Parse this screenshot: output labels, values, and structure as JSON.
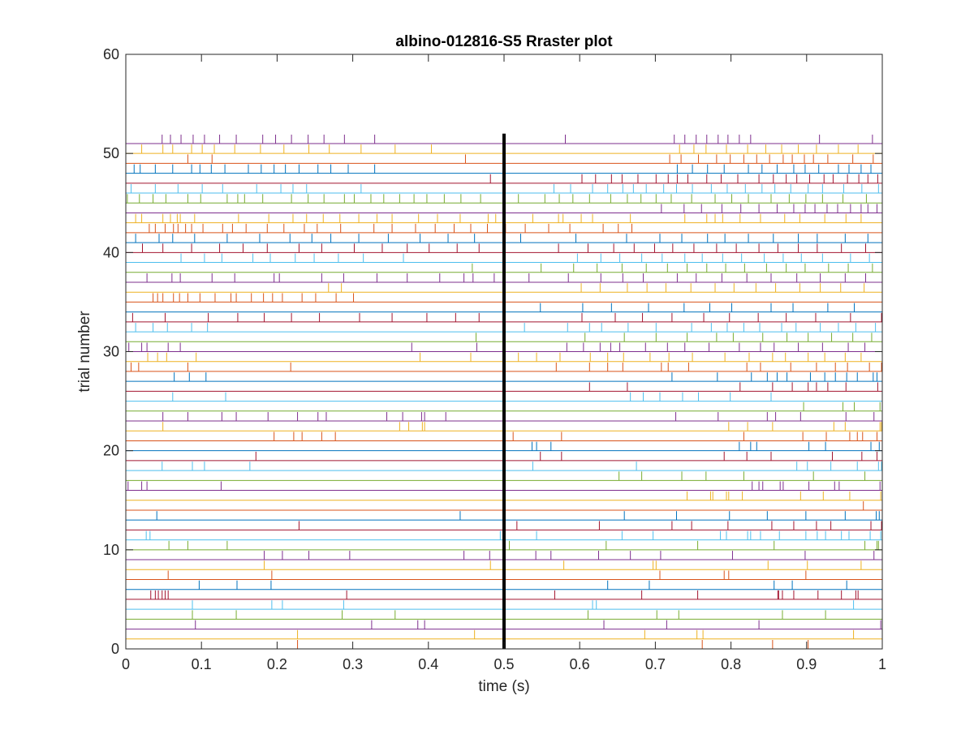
{
  "chart_data": {
    "type": "raster",
    "title": "albino-012816-S5 Rraster plot",
    "xlabel": "time (s)",
    "ylabel": "trial number",
    "xlim": [
      0,
      1
    ],
    "ylim": [
      0,
      60
    ],
    "xticks": [
      0,
      0.1,
      0.2,
      0.3,
      0.4,
      0.5,
      0.6,
      0.7,
      0.8,
      0.9,
      1
    ],
    "xtick_labels": [
      "0",
      "0.1",
      "0.2",
      "0.3",
      "0.4",
      "0.5",
      "0.6",
      "0.7",
      "0.8",
      "0.9",
      "1"
    ],
    "yticks": [
      0,
      10,
      20,
      30,
      40,
      50,
      60
    ],
    "ytick_labels": [
      "0",
      "10",
      "20",
      "30",
      "40",
      "50",
      "60"
    ],
    "grid": false,
    "box": true,
    "stimulus_marker": {
      "x": 0.5,
      "y_range": [
        0,
        52
      ],
      "color": "#000000"
    },
    "series_colors": [
      "#d95319",
      "#edb120",
      "#7e2f8e",
      "#77ac30",
      "#4dbeee",
      "#a2142f",
      "#0072bd"
    ],
    "trials": [
      {
        "trial": 1,
        "spikes": [
          0.227,
          0.762,
          0.855,
          0.902
        ]
      },
      {
        "trial": 2,
        "spikes": [
          0.227,
          0.461,
          0.686,
          0.755,
          0.763,
          0.962
        ]
      },
      {
        "trial": 3,
        "spikes": [
          0.092,
          0.325,
          0.386,
          0.395,
          0.632,
          0.715,
          0.837,
          0.998
        ]
      },
      {
        "trial": 4,
        "spikes": [
          0.088,
          0.146,
          0.286,
          0.356,
          0.611,
          0.702,
          0.731,
          0.868,
          0.925
        ]
      },
      {
        "trial": 5,
        "spikes": [
          0.088,
          0.193,
          0.207,
          0.288,
          0.617,
          0.622,
          0.962
        ]
      },
      {
        "trial": 6,
        "spikes": [
          0.033,
          0.039,
          0.043,
          0.048,
          0.052,
          0.056,
          0.292,
          0.567,
          0.682,
          0.756,
          0.862,
          0.863,
          0.868,
          0.883,
          0.915,
          0.946,
          0.965,
          0.968
        ]
      },
      {
        "trial": 7,
        "spikes": [
          0.097,
          0.147,
          0.192,
          0.637,
          0.692,
          0.857,
          0.881,
          0.953
        ]
      },
      {
        "trial": 8,
        "spikes": [
          0.056,
          0.193,
          0.706,
          0.791,
          0.797,
          0.899
        ]
      },
      {
        "trial": 9,
        "spikes": [
          0.183,
          0.482,
          0.579,
          0.697,
          0.701,
          0.849,
          0.901,
          0.972
        ]
      },
      {
        "trial": 10,
        "spikes": [
          0.183,
          0.207,
          0.242,
          0.296,
          0.447,
          0.481,
          0.542,
          0.562,
          0.625,
          0.667,
          0.707,
          0.802,
          0.898,
          0.989
        ]
      },
      {
        "trial": 11,
        "spikes": [
          0.057,
          0.082,
          0.134,
          0.507,
          0.635,
          0.756,
          0.857,
          0.977,
          0.993,
          0.995
        ]
      },
      {
        "trial": 12,
        "spikes": [
          0.027,
          0.032,
          0.495,
          0.543,
          0.656,
          0.697,
          0.786,
          0.794,
          0.822,
          0.826,
          0.839,
          0.864,
          0.899,
          0.914,
          0.925,
          0.946,
          0.956,
          0.984,
          0.998
        ]
      },
      {
        "trial": 13,
        "spikes": [
          0.229,
          0.517,
          0.626,
          0.722,
          0.748,
          0.796,
          0.854,
          0.883,
          0.913,
          0.932,
          0.985,
          0.999
        ]
      },
      {
        "trial": 14,
        "spikes": [
          0.041,
          0.442,
          0.659,
          0.728,
          0.798,
          0.848,
          0.899,
          0.951,
          0.992,
          0.996
        ]
      },
      {
        "trial": 15,
        "spikes": [
          0.975
        ]
      },
      {
        "trial": 16,
        "spikes": [
          0.742,
          0.773,
          0.776,
          0.794,
          0.797,
          0.815,
          0.892,
          0.922,
          0.957,
          0.998
        ]
      },
      {
        "trial": 17,
        "spikes": [
          0.003,
          0.021,
          0.028,
          0.126,
          0.828,
          0.837,
          0.842,
          0.865,
          0.869,
          0.903,
          0.937,
          0.943,
          0.997
        ]
      },
      {
        "trial": 18,
        "spikes": [
          0.652,
          0.682,
          0.735,
          0.767,
          0.817,
          0.909,
          0.977
        ]
      },
      {
        "trial": 19,
        "spikes": [
          0.048,
          0.088,
          0.104,
          0.164,
          0.538,
          0.675,
          0.887,
          0.901,
          0.932,
          0.967,
          0.995,
          0.999
        ]
      },
      {
        "trial": 20,
        "spikes": [
          0.172,
          0.548,
          0.576,
          0.791,
          0.821,
          0.853,
          0.934,
          0.973,
          0.993
        ]
      },
      {
        "trial": 21,
        "spikes": [
          0.537,
          0.543,
          0.562,
          0.811,
          0.826,
          0.834,
          0.903,
          0.925,
          0.985,
          0.996
        ]
      },
      {
        "trial": 22,
        "spikes": [
          0.196,
          0.222,
          0.233,
          0.259,
          0.277,
          0.512,
          0.576,
          0.817,
          0.895,
          0.926,
          0.957,
          0.967,
          0.974,
          0.993
        ]
      },
      {
        "trial": 23,
        "spikes": [
          0.049,
          0.362,
          0.374,
          0.392,
          0.395,
          0.797,
          0.822,
          0.855,
          0.936,
          0.951,
          0.997,
          0.999
        ]
      },
      {
        "trial": 24,
        "spikes": [
          0.049,
          0.082,
          0.127,
          0.146,
          0.188,
          0.227,
          0.254,
          0.265,
          0.345,
          0.366,
          0.391,
          0.395,
          0.423,
          0.727,
          0.783,
          0.848,
          0.859,
          0.892,
          0.952,
          0.989
        ]
      },
      {
        "trial": 25,
        "spikes": [
          0.896,
          0.948,
          0.963,
          0.997
        ]
      },
      {
        "trial": 26,
        "spikes": [
          0.062,
          0.132,
          0.667,
          0.684,
          0.706,
          0.736,
          0.757,
          0.799,
          0.853
        ]
      },
      {
        "trial": 27,
        "spikes": [
          0.613,
          0.663,
          0.812,
          0.855,
          0.881,
          0.902,
          0.913,
          0.928,
          0.952,
          0.994
        ]
      },
      {
        "trial": 28,
        "spikes": [
          0.064,
          0.084,
          0.106,
          0.722,
          0.782,
          0.827,
          0.848,
          0.861,
          0.874,
          0.905,
          0.924,
          0.938,
          0.953,
          0.967,
          0.988,
          0.993
        ]
      },
      {
        "trial": 29,
        "spikes": [
          0.007,
          0.017,
          0.082,
          0.218,
          0.569,
          0.613,
          0.637,
          0.657,
          0.708,
          0.717,
          0.744,
          0.821,
          0.839,
          0.879,
          0.913,
          0.938,
          0.954,
          0.983,
          0.999
        ]
      },
      {
        "trial": 30,
        "spikes": [
          0.029,
          0.042,
          0.054,
          0.093,
          0.389,
          0.456,
          0.519,
          0.543,
          0.574,
          0.614,
          0.637,
          0.658,
          0.693,
          0.718,
          0.749,
          0.792,
          0.824,
          0.855,
          0.872,
          0.902,
          0.924,
          0.951,
          0.972
        ]
      },
      {
        "trial": 31,
        "spikes": [
          0.004,
          0.021,
          0.028,
          0.056,
          0.072,
          0.378,
          0.464,
          0.583,
          0.605,
          0.627,
          0.641,
          0.653,
          0.687,
          0.716,
          0.739,
          0.771,
          0.811,
          0.839,
          0.857,
          0.889,
          0.921,
          0.955,
          0.977
        ]
      },
      {
        "trial": 32,
        "spikes": [
          0.463,
          0.607,
          0.659,
          0.701,
          0.742,
          0.781,
          0.803,
          0.842,
          0.874,
          0.902,
          0.933,
          0.961,
          0.986
        ]
      },
      {
        "trial": 33,
        "spikes": [
          0.013,
          0.036,
          0.055,
          0.087,
          0.108,
          0.527,
          0.584,
          0.613,
          0.629,
          0.664,
          0.701,
          0.748,
          0.774,
          0.795,
          0.817,
          0.838,
          0.867,
          0.886,
          0.918,
          0.942,
          0.965,
          0.991
        ]
      },
      {
        "trial": 34,
        "spikes": [
          0.009,
          0.052,
          0.109,
          0.148,
          0.183,
          0.219,
          0.256,
          0.309,
          0.352,
          0.398,
          0.436,
          0.467,
          0.603,
          0.647,
          0.683,
          0.722,
          0.764,
          0.798,
          0.836,
          0.873,
          0.912,
          0.958,
          0.999
        ]
      },
      {
        "trial": 35,
        "spikes": [
          0.548,
          0.604,
          0.642,
          0.691,
          0.738,
          0.772,
          0.801,
          0.853,
          0.882,
          0.928,
          0.963
        ]
      },
      {
        "trial": 36,
        "spikes": [
          0.036,
          0.042,
          0.049,
          0.063,
          0.071,
          0.082,
          0.098,
          0.118,
          0.139,
          0.146,
          0.166,
          0.182,
          0.194,
          0.207,
          0.233,
          0.251,
          0.278,
          0.301
        ]
      },
      {
        "trial": 37,
        "spikes": [
          0.268,
          0.285,
          0.602,
          0.627,
          0.663,
          0.689,
          0.714,
          0.747,
          0.779,
          0.804,
          0.833,
          0.859,
          0.891,
          0.918,
          0.945,
          0.976
        ]
      },
      {
        "trial": 38,
        "spikes": [
          0.028,
          0.061,
          0.072,
          0.114,
          0.144,
          0.196,
          0.203,
          0.259,
          0.288,
          0.332,
          0.372,
          0.415,
          0.447,
          0.459,
          0.487,
          0.533,
          0.585,
          0.628,
          0.657,
          0.684,
          0.729,
          0.754,
          0.788,
          0.821,
          0.853,
          0.887,
          0.918,
          0.951,
          0.978
        ]
      },
      {
        "trial": 39,
        "spikes": [
          0.458,
          0.549,
          0.592,
          0.623,
          0.656,
          0.688,
          0.716,
          0.742,
          0.768,
          0.793,
          0.818,
          0.847,
          0.873,
          0.898,
          0.929,
          0.955,
          0.987
        ]
      },
      {
        "trial": 40,
        "spikes": [
          0.073,
          0.104,
          0.127,
          0.168,
          0.191,
          0.224,
          0.249,
          0.281,
          0.314,
          0.367,
          0.597,
          0.628,
          0.653,
          0.682,
          0.709,
          0.739,
          0.762,
          0.789,
          0.814,
          0.844,
          0.869,
          0.893,
          0.921,
          0.958,
          0.983
        ]
      },
      {
        "trial": 41,
        "spikes": [
          0.022,
          0.049,
          0.087,
          0.124,
          0.155,
          0.187,
          0.229,
          0.259,
          0.302,
          0.339,
          0.372,
          0.401,
          0.438,
          0.467,
          0.499,
          0.572,
          0.611,
          0.645,
          0.672,
          0.699,
          0.723,
          0.751,
          0.781,
          0.807,
          0.837,
          0.862,
          0.889,
          0.914,
          0.946,
          0.978
        ]
      },
      {
        "trial": 42,
        "spikes": [
          0.013,
          0.044,
          0.062,
          0.091,
          0.134,
          0.177,
          0.217,
          0.246,
          0.271,
          0.308,
          0.347,
          0.389,
          0.426,
          0.461,
          0.522,
          0.595,
          0.662,
          0.706,
          0.735,
          0.769,
          0.792,
          0.823,
          0.856,
          0.889,
          0.914,
          0.951,
          0.981
        ]
      },
      {
        "trial": 43,
        "spikes": [
          0.031,
          0.039,
          0.052,
          0.063,
          0.069,
          0.079,
          0.087,
          0.102,
          0.128,
          0.141,
          0.159,
          0.187,
          0.209,
          0.236,
          0.253,
          0.284,
          0.328,
          0.352,
          0.383,
          0.409,
          0.434,
          0.456,
          0.478,
          0.502,
          0.528,
          0.559,
          0.587,
          0.631,
          0.651,
          0.669
        ]
      },
      {
        "trial": 44,
        "spikes": [
          0.013,
          0.021,
          0.049,
          0.059,
          0.068,
          0.072,
          0.091,
          0.149,
          0.189,
          0.221,
          0.239,
          0.261,
          0.283,
          0.308,
          0.332,
          0.352,
          0.387,
          0.412,
          0.442,
          0.479,
          0.489,
          0.538,
          0.572,
          0.578,
          0.602,
          0.617,
          0.667,
          0.739,
          0.768,
          0.779,
          0.789,
          0.812,
          0.839,
          0.871,
          0.891,
          0.924,
          0.952,
          0.972
        ]
      },
      {
        "trial": 45,
        "spikes": [
          0.708,
          0.738,
          0.761,
          0.788,
          0.813,
          0.837,
          0.861,
          0.883,
          0.898,
          0.911,
          0.927,
          0.941,
          0.958,
          0.972,
          0.981,
          0.993
        ]
      },
      {
        "trial": 46,
        "spikes": [
          0.002,
          0.018,
          0.036,
          0.053,
          0.082,
          0.099,
          0.134,
          0.148,
          0.157,
          0.181,
          0.219,
          0.241,
          0.262,
          0.289,
          0.302,
          0.324,
          0.341,
          0.362,
          0.381,
          0.398,
          0.421,
          0.443,
          0.469,
          0.519,
          0.554,
          0.573,
          0.591,
          0.613,
          0.641,
          0.663,
          0.681,
          0.701,
          0.721,
          0.748,
          0.779,
          0.801,
          0.823,
          0.853,
          0.877,
          0.899,
          0.921,
          0.948,
          0.979
        ]
      },
      {
        "trial": 47,
        "spikes": [
          0.007,
          0.039,
          0.069,
          0.101,
          0.128,
          0.173,
          0.205,
          0.221,
          0.239,
          0.311,
          0.566,
          0.588,
          0.617,
          0.637,
          0.657,
          0.671,
          0.688,
          0.711,
          0.728,
          0.749,
          0.774,
          0.795,
          0.819,
          0.841,
          0.858,
          0.879,
          0.902,
          0.921,
          0.949,
          0.973,
          0.995
        ]
      },
      {
        "trial": 48,
        "spikes": [
          0.482,
          0.603,
          0.621,
          0.642,
          0.656,
          0.677,
          0.701,
          0.717,
          0.729,
          0.743,
          0.768,
          0.787,
          0.809,
          0.837,
          0.856,
          0.873,
          0.887,
          0.904,
          0.923,
          0.935,
          0.954,
          0.969,
          0.981,
          0.994
        ]
      },
      {
        "trial": 49,
        "spikes": [
          0.011,
          0.019,
          0.039,
          0.062,
          0.087,
          0.098,
          0.113,
          0.131,
          0.162,
          0.179,
          0.196,
          0.211,
          0.229,
          0.254,
          0.271,
          0.294,
          0.329,
          0.729,
          0.749,
          0.769,
          0.791,
          0.823,
          0.841,
          0.861,
          0.883,
          0.898,
          0.916,
          0.942,
          0.956,
          0.972,
          0.985
        ]
      },
      {
        "trial": 50,
        "spikes": [
          0.082,
          0.114,
          0.449,
          0.719,
          0.734,
          0.757,
          0.781,
          0.799,
          0.817,
          0.834,
          0.851,
          0.869,
          0.881,
          0.897,
          0.909,
          0.928,
          0.961,
          0.988
        ]
      },
      {
        "trial": 51,
        "spikes": [
          0.021,
          0.049,
          0.062,
          0.087,
          0.101,
          0.117,
          0.144,
          0.178,
          0.209,
          0.242,
          0.269,
          0.311,
          0.356,
          0.404,
          0.732,
          0.751,
          0.767,
          0.794,
          0.822,
          0.846,
          0.867,
          0.889,
          0.913,
          0.942,
          0.968
        ]
      },
      {
        "trial": 52,
        "spikes": [
          0.048,
          0.059,
          0.073,
          0.089,
          0.104,
          0.124,
          0.146,
          0.181,
          0.198,
          0.219,
          0.241,
          0.262,
          0.289,
          0.329,
          0.581,
          0.725,
          0.739,
          0.754,
          0.768,
          0.783,
          0.796,
          0.811,
          0.826,
          0.917,
          0.987
        ]
      }
    ]
  }
}
